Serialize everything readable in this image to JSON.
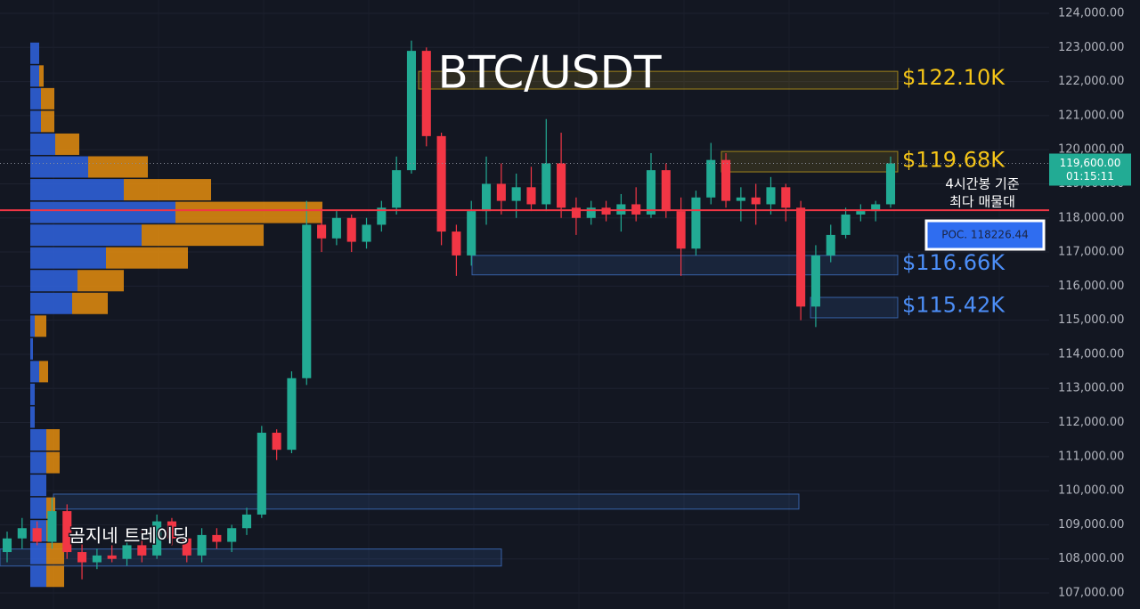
{
  "chart_data": {
    "type": "candlestick",
    "title": "BTC/USDT",
    "watermark": "곰지네 트레이딩",
    "up_color": "#22ab94",
    "down_color": "#f23645",
    "ylim": [
      107000,
      124000
    ],
    "yticks": [
      {
        "value": 107000,
        "label": "107,000.00"
      },
      {
        "value": 108000,
        "label": "108,000.00"
      },
      {
        "value": 109000,
        "label": "109,000.00"
      },
      {
        "value": 110000,
        "label": "110,000.00"
      },
      {
        "value": 111000,
        "label": "111,000.00"
      },
      {
        "value": 112000,
        "label": "112,000.00"
      },
      {
        "value": 113000,
        "label": "113,000.00"
      },
      {
        "value": 114000,
        "label": "114,000.00"
      },
      {
        "value": 115000,
        "label": "115,000.00"
      },
      {
        "value": 116000,
        "label": "116,000.00"
      },
      {
        "value": 117000,
        "label": "117,000.00"
      },
      {
        "value": 118000,
        "label": "118,000.00"
      },
      {
        "value": 119000,
        "label": "119,000.00"
      },
      {
        "value": 120000,
        "label": "120,000.00"
      },
      {
        "value": 121000,
        "label": "121,000.00"
      },
      {
        "value": 122000,
        "label": "122,000.00"
      },
      {
        "value": 123000,
        "label": "123,000.00"
      },
      {
        "value": 124000,
        "label": "124,000.00"
      }
    ],
    "grid": true,
    "open": [
      108200,
      108600,
      108900,
      108500,
      109400,
      108200,
      107900,
      108100,
      108000,
      108400,
      108100,
      109100,
      108600,
      108100,
      108700,
      108500,
      108900,
      109300,
      111700,
      111200,
      113300,
      117800,
      117400,
      118000,
      117300,
      117800,
      118300,
      119400,
      122900,
      120400,
      117600,
      116900,
      118200,
      119000,
      118500,
      118900,
      118400,
      119600,
      118300,
      118000,
      118300,
      118100,
      118400,
      118100,
      119400,
      118200,
      117100,
      118600,
      119700,
      118500,
      118600,
      118400,
      118900,
      118300,
      115400,
      116900,
      117500,
      118100,
      118200,
      118400
    ],
    "high": [
      108800,
      109200,
      109100,
      109800,
      109600,
      108500,
      108300,
      108400,
      108600,
      108900,
      109300,
      109200,
      108800,
      108900,
      108900,
      109000,
      109500,
      111900,
      111800,
      113500,
      118500,
      118300,
      118200,
      118100,
      118000,
      118500,
      119800,
      123200,
      123000,
      120500,
      117800,
      118500,
      119800,
      119600,
      119300,
      119500,
      120900,
      120500,
      118600,
      118500,
      118500,
      118700,
      118900,
      119900,
      119600,
      118600,
      118800,
      120200,
      119900,
      118900,
      119000,
      119200,
      119000,
      118500,
      117200,
      117800,
      118300,
      118400,
      118500,
      119800
    ],
    "low": [
      107900,
      108300,
      108400,
      108300,
      108000,
      107400,
      107700,
      107900,
      107800,
      107900,
      108000,
      108400,
      107900,
      107900,
      108300,
      108200,
      108700,
      109200,
      110900,
      111100,
      113100,
      117000,
      117200,
      117000,
      117100,
      117600,
      118100,
      119300,
      120100,
      117200,
      116300,
      116600,
      117800,
      118100,
      118000,
      118200,
      118200,
      118000,
      117500,
      117800,
      117900,
      117600,
      117900,
      118000,
      118000,
      116300,
      116900,
      118400,
      118300,
      117900,
      117800,
      118100,
      117900,
      115000,
      114800,
      116700,
      117400,
      117900,
      117900,
      118300
    ],
    "close": [
      108600,
      108900,
      108500,
      109400,
      108200,
      107900,
      108100,
      108000,
      108400,
      108100,
      109100,
      108600,
      108100,
      108700,
      108500,
      108900,
      109300,
      111700,
      111200,
      113300,
      117800,
      117400,
      118000,
      117300,
      117800,
      118300,
      119400,
      122900,
      120400,
      117600,
      116900,
      118200,
      119000,
      118500,
      118900,
      118400,
      119600,
      118300,
      118000,
      118300,
      118100,
      118400,
      118100,
      119400,
      118200,
      117100,
      118600,
      119700,
      118500,
      118600,
      118400,
      118900,
      118300,
      115400,
      116900,
      117500,
      118100,
      118200,
      118400,
      119600
    ],
    "last_price": {
      "value": 119600,
      "label": "119,600.00"
    },
    "countdown": "01:15:11",
    "poc": {
      "value": 118226.44,
      "label": "POC. 118226.44",
      "color": "#f23645"
    },
    "annotation": [
      "4시간봉 기준",
      "최다 매물대"
    ],
    "zones": [
      {
        "label": "$122.10K",
        "value": 122100,
        "top": 122300,
        "bottom": 121780,
        "color": "#f5c518"
      },
      {
        "label": "$119.68K",
        "value": 119680,
        "top": 119950,
        "bottom": 119350,
        "color": "#f5c518"
      },
      {
        "label": "$116.66K",
        "value": 116660,
        "top": 116900,
        "bottom": 116330,
        "color": "#4c8ef7"
      },
      {
        "label": "$115.42K",
        "value": 115420,
        "top": 115670,
        "bottom": 115070,
        "color": "#4c8ef7"
      },
      {
        "top": 109900,
        "bottom": 109460,
        "color": "#4c8ef7"
      },
      {
        "top": 108290,
        "bottom": 107790,
        "color": "#4c8ef7"
      }
    ],
    "volume_profile": {
      "levels": [
        122830,
        122163,
        121496,
        120829,
        120162,
        119495,
        118828,
        118161,
        117494,
        116827,
        116160,
        115493,
        114826,
        114159,
        113492,
        112825,
        112158,
        111491,
        110824,
        110157,
        109490,
        108823,
        108156,
        107489
      ],
      "buy": [
        10,
        10,
        12,
        12,
        28,
        65,
        105,
        163,
        125,
        85,
        53,
        47,
        5,
        3,
        10,
        5,
        5,
        18,
        18,
        18,
        18,
        18,
        18,
        18
      ],
      "sell": [
        0,
        5,
        15,
        15,
        27,
        67,
        98,
        165,
        137,
        92,
        52,
        40,
        13,
        0,
        10,
        0,
        0,
        15,
        15,
        0,
        10,
        10,
        20,
        20
      ],
      "buy_color": "#2f5fd6",
      "sell_color": "#d9860f"
    }
  }
}
